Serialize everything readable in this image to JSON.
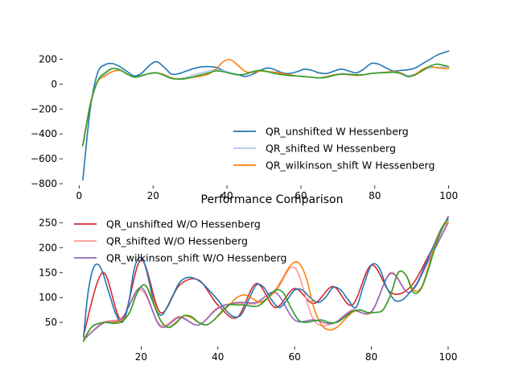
{
  "chart_data": [
    {
      "type": "line",
      "title": "",
      "xlabel": "",
      "ylabel": "",
      "xlim": [
        -4,
        104
      ],
      "ylim": [
        -800,
        300
      ],
      "xticks": [
        0,
        20,
        40,
        60,
        80,
        100
      ],
      "yticks": [
        -800,
        -600,
        -400,
        -200,
        0,
        200
      ],
      "xtick_labels": [
        "0",
        "20",
        "40",
        "60",
        "80",
        "100"
      ],
      "ytick_labels": [
        "−800",
        "−600",
        "−400",
        "−200",
        "0",
        "200"
      ],
      "grid": false,
      "legend": "lower-right",
      "series": [
        {
          "name": "QR_unshifted W Hessenberg",
          "color": "#1f77b4",
          "x": [
            1,
            3,
            5,
            7,
            9,
            11,
            13,
            15,
            17,
            19,
            21,
            23,
            25,
            27,
            29,
            31,
            33,
            35,
            37,
            39,
            41,
            43,
            45,
            47,
            49,
            51,
            53,
            55,
            57,
            59,
            61,
            63,
            65,
            67,
            69,
            71,
            73,
            75,
            77,
            79,
            81,
            83,
            85,
            87,
            89,
            91,
            93,
            95,
            97,
            100
          ],
          "y": [
            -770,
            -200,
            90,
            155,
            165,
            140,
            100,
            65,
            90,
            150,
            180,
            135,
            80,
            85,
            105,
            125,
            138,
            140,
            135,
            110,
            90,
            75,
            62,
            80,
            110,
            130,
            115,
            90,
            85,
            100,
            120,
            110,
            90,
            85,
            105,
            120,
            105,
            90,
            120,
            165,
            160,
            130,
            105,
            110,
            115,
            130,
            165,
            200,
            235,
            265
          ]
        },
        {
          "name": "QR_shifted W Hessenberg",
          "color": "#aec7e8",
          "x": [
            1,
            3,
            5,
            7,
            9,
            11,
            13,
            15,
            17,
            19,
            21,
            23,
            25,
            27,
            29,
            31,
            33,
            35,
            37,
            39,
            41,
            43,
            45,
            47,
            49,
            51,
            53,
            55,
            57,
            59,
            61,
            63,
            65,
            67,
            69,
            71,
            73,
            75,
            77,
            79,
            81,
            83,
            85,
            87,
            89,
            91,
            93,
            95,
            97,
            100
          ],
          "y": [
            -480,
            -170,
            20,
            80,
            125,
            115,
            80,
            55,
            65,
            85,
            90,
            70,
            45,
            45,
            55,
            75,
            90,
            105,
            115,
            108,
            90,
            75,
            80,
            100,
            110,
            100,
            90,
            80,
            70,
            65,
            62,
            55,
            50,
            60,
            75,
            85,
            80,
            75,
            75,
            85,
            90,
            95,
            100,
            90,
            70,
            80,
            110,
            130,
            135,
            140
          ]
        },
        {
          "name": "QR_wilkinson_shift W Hessenberg",
          "color": "#ff7f0e",
          "x": [
            1,
            3,
            5,
            7,
            9,
            11,
            13,
            15,
            17,
            19,
            21,
            23,
            25,
            27,
            29,
            31,
            33,
            35,
            37,
            39,
            41,
            43,
            45,
            47,
            49,
            51,
            53,
            55,
            57,
            59,
            61,
            63,
            65,
            67,
            69,
            71,
            73,
            75,
            77,
            79,
            81,
            83,
            85,
            87,
            89,
            91,
            93,
            95,
            97,
            100
          ],
          "y": [
            -490,
            -160,
            20,
            65,
            100,
            110,
            80,
            55,
            70,
            85,
            90,
            75,
            50,
            40,
            45,
            55,
            65,
            80,
            120,
            180,
            195,
            150,
            100,
            95,
            105,
            100,
            95,
            85,
            75,
            65,
            60,
            55,
            50,
            60,
            75,
            80,
            75,
            70,
            75,
            85,
            90,
            95,
            100,
            90,
            60,
            80,
            120,
            140,
            130,
            125
          ]
        },
        {
          "name": "",
          "color": "#2ca02c",
          "x": [
            1,
            3,
            5,
            7,
            9,
            11,
            13,
            15,
            17,
            19,
            21,
            23,
            25,
            27,
            29,
            31,
            33,
            35,
            37,
            39,
            41,
            43,
            45,
            47,
            49,
            51,
            53,
            55,
            57,
            59,
            61,
            63,
            65,
            67,
            69,
            71,
            73,
            75,
            77,
            79,
            81,
            83,
            85,
            87,
            89,
            91,
            93,
            95,
            97,
            100
          ],
          "y": [
            -495,
            -170,
            25,
            90,
            125,
            115,
            80,
            55,
            70,
            85,
            90,
            70,
            45,
            40,
            45,
            60,
            75,
            90,
            105,
            100,
            85,
            75,
            80,
            100,
            110,
            100,
            85,
            75,
            68,
            65,
            60,
            55,
            50,
            55,
            70,
            80,
            78,
            75,
            75,
            85,
            90,
            92,
            95,
            85,
            60,
            75,
            110,
            145,
            160,
            140
          ]
        }
      ]
    },
    {
      "type": "line",
      "title": "Performance Comparison",
      "xlabel": "",
      "ylabel": "",
      "xlim": [
        0,
        104
      ],
      "ylim": [
        5,
        270
      ],
      "xticks": [
        20,
        40,
        60,
        80,
        100
      ],
      "yticks": [
        50,
        100,
        150,
        200,
        250
      ],
      "xtick_labels": [
        "20",
        "40",
        "60",
        "80",
        "100"
      ],
      "ytick_labels": [
        "50",
        "100",
        "150",
        "200",
        "250"
      ],
      "grid": false,
      "legend": "upper-left",
      "series": [
        {
          "name": "QR_unshifted W/O Hessenberg",
          "color": "#d62728",
          "x": [
            5,
            10,
            15,
            20,
            25,
            30,
            35,
            40,
            45,
            50,
            55,
            60,
            65,
            70,
            75,
            80,
            85,
            90,
            95,
            100
          ],
          "y": [
            25,
            150,
            55,
            175,
            70,
            125,
            135,
            85,
            60,
            128,
            80,
            118,
            88,
            122,
            85,
            165,
            110,
            120,
            185,
            262
          ]
        },
        {
          "name": "QR_shifted W/O Hessenberg",
          "color": "#ff9896",
          "x": [
            5,
            10,
            15,
            20,
            25,
            30,
            35,
            40,
            45,
            50,
            55,
            60,
            65,
            70,
            75,
            80,
            85,
            90,
            95,
            100
          ],
          "y": [
            15,
            50,
            60,
            115,
            45,
            62,
            45,
            80,
            88,
            88,
            112,
            160,
            55,
            48,
            75,
            70,
            150,
            110,
            180,
            252
          ]
        },
        {
          "name": "QR_wilkinson_shift W/O Hessenberg",
          "color": "#9467bd",
          "x": [
            5,
            10,
            15,
            20,
            25,
            30,
            35,
            40,
            45,
            50,
            55,
            60,
            65,
            70,
            75,
            80,
            85,
            90,
            95,
            100
          ],
          "y": [
            15,
            48,
            58,
            120,
            42,
            60,
            45,
            78,
            90,
            90,
            110,
            55,
            55,
            48,
            73,
            72,
            148,
            110,
            175,
            250
          ]
        },
        {
          "name": "",
          "color": "#1f77b4",
          "x": [
            5,
            6,
            7,
            8,
            9,
            10,
            11,
            12,
            13,
            14,
            15,
            16,
            17,
            18,
            19,
            20,
            21,
            22,
            23,
            24,
            25,
            26,
            28,
            30,
            32,
            34,
            36,
            38,
            40,
            42,
            44,
            46,
            48,
            50,
            52,
            54,
            56,
            58,
            60,
            62,
            64,
            66,
            68,
            70,
            72,
            74,
            76,
            78,
            80,
            82,
            84,
            86,
            88,
            90,
            92,
            94,
            96,
            98,
            100
          ],
          "y": [
            20,
            100,
            145,
            165,
            165,
            150,
            125,
            100,
            75,
            58,
            50,
            65,
            100,
            150,
            175,
            180,
            165,
            135,
            100,
            75,
            65,
            70,
            100,
            130,
            140,
            138,
            128,
            112,
            95,
            75,
            62,
            65,
            95,
            125,
            120,
            95,
            80,
            95,
            115,
            115,
            100,
            90,
            100,
            120,
            115,
            95,
            80,
            125,
            165,
            160,
            120,
            95,
            95,
            110,
            130,
            165,
            200,
            235,
            260
          ]
        },
        {
          "name": "",
          "color": "#ff7f0e",
          "x": [
            5,
            7,
            9,
            11,
            13,
            15,
            17,
            19,
            21,
            23,
            25,
            27,
            29,
            31,
            33,
            35,
            37,
            39,
            41,
            43,
            45,
            47,
            49,
            51,
            53,
            55,
            57,
            59,
            61,
            63,
            65,
            67,
            69,
            71,
            73,
            75,
            77,
            79,
            81,
            83,
            85,
            87,
            89,
            91,
            93,
            95,
            97,
            99,
            100
          ],
          "y": [
            15,
            40,
            48,
            50,
            50,
            55,
            70,
            110,
            125,
            95,
            55,
            40,
            50,
            63,
            60,
            50,
            45,
            55,
            70,
            85,
            100,
            105,
            98,
            90,
            98,
            115,
            140,
            165,
            170,
            140,
            80,
            45,
            35,
            40,
            55,
            70,
            75,
            70,
            70,
            75,
            105,
            150,
            145,
            115,
            120,
            165,
            215,
            245,
            250
          ]
        },
        {
          "name": "",
          "color": "#2ca02c",
          "x": [
            5,
            7,
            9,
            11,
            13,
            15,
            17,
            19,
            21,
            23,
            25,
            27,
            29,
            31,
            33,
            35,
            37,
            39,
            41,
            43,
            45,
            47,
            49,
            51,
            53,
            55,
            57,
            59,
            61,
            63,
            65,
            67,
            69,
            71,
            73,
            75,
            77,
            79,
            81,
            83,
            85,
            87,
            89,
            91,
            93,
            95,
            97,
            99,
            100
          ],
          "y": [
            12,
            40,
            48,
            50,
            48,
            52,
            70,
            110,
            125,
            92,
            55,
            40,
            48,
            63,
            62,
            50,
            45,
            55,
            72,
            85,
            85,
            85,
            82,
            85,
            100,
            115,
            110,
            80,
            55,
            50,
            53,
            55,
            50,
            50,
            60,
            72,
            75,
            70,
            70,
            75,
            105,
            150,
            145,
            110,
            118,
            160,
            210,
            248,
            255
          ]
        }
      ]
    }
  ]
}
